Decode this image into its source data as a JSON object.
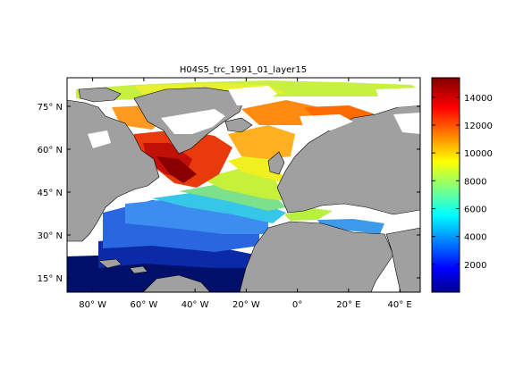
{
  "chart_data": {
    "type": "heatmap",
    "title": "H04S5_trc_1991_01_layer15",
    "xlabel": "",
    "ylabel": "",
    "x_ticks": [
      "80° W",
      "60° W",
      "40° W",
      "20° W",
      "0°",
      "20° E",
      "40° E"
    ],
    "x_tick_values": [
      -80,
      -60,
      -40,
      -20,
      0,
      20,
      40
    ],
    "y_ticks": [
      "75° N",
      "60° N",
      "45° N",
      "30° N",
      "15° N"
    ],
    "y_tick_values": [
      75,
      60,
      45,
      30,
      15
    ],
    "xlim": [
      -90,
      48
    ],
    "ylim": [
      10,
      85
    ],
    "colorbar": {
      "ticks": [
        2000,
        4000,
        6000,
        8000,
        10000,
        12000,
        14000
      ],
      "range": [
        0,
        15400
      ],
      "colormap": "jet"
    },
    "colors": {
      "land": "#a0a0a0",
      "background": "#ffffff",
      "coast": "#000000"
    }
  }
}
